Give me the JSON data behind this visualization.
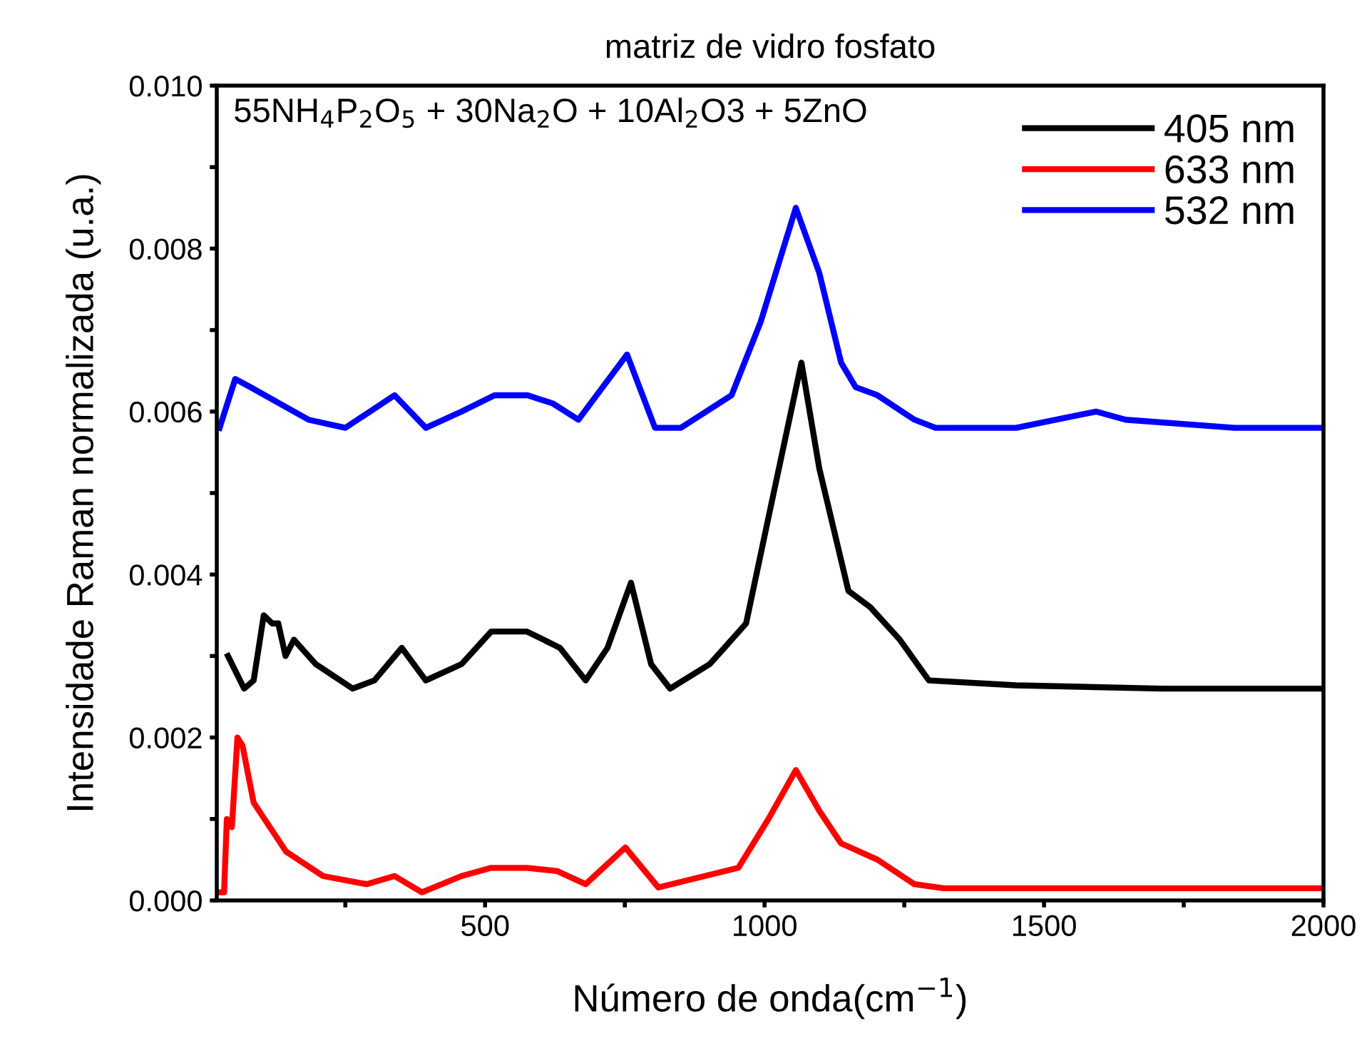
{
  "chart_data": {
    "type": "line",
    "title": "matriz de vidro fosfato",
    "xlabel": "Número de onda(cm$^{−1}$)",
    "ylabel": "Intensidade Raman normalizada (u.a.)",
    "annotations": [
      "55NH$_{4}$P$_{2}$O$_{5}$ + 30Na$_{2}$O + 10Al$_{2}$O3 + 5ZnO"
    ],
    "xlim": [
      20,
      2000
    ],
    "ylim": [
      0,
      0.01
    ],
    "xticks": [
      {
        "value": 250,
        "label": null
      },
      500,
      {
        "value": 750,
        "label": null
      },
      1000,
      {
        "value": 1250,
        "label": null
      },
      1500,
      {
        "value": 1750,
        "label": null
      },
      2000
    ],
    "yticks": [
      {
        "value": 0,
        "label": "0.000"
      },
      {
        "value": 0.001,
        "label": null
      },
      {
        "value": 0.002,
        "label": "0.002"
      },
      {
        "value": 0.003,
        "label": null
      },
      {
        "value": 0.004,
        "label": "0.004"
      },
      {
        "value": 0.005,
        "label": null
      },
      {
        "value": 0.006,
        "label": "0.006"
      },
      {
        "value": 0.007,
        "label": null
      },
      {
        "value": 0.008,
        "label": "0.008"
      },
      {
        "value": 0.009,
        "label": null
      },
      {
        "value": 0.01,
        "label": "0.010"
      }
    ],
    "grid": false,
    "legend": "top right",
    "marker": "none",
    "line_style": "solid",
    "series": [
      {
        "name": "405 nm",
        "color": "#000000",
        "x": [
          40,
          69,
          86,
          104,
          119,
          130,
          143,
          158,
          197,
          263,
          302,
          351,
          394,
          458,
          511,
          575,
          634,
          680,
          719,
          761,
          797,
          831,
          902,
          967,
          1007,
          1066,
          1098,
          1150,
          1189,
          1242,
          1294,
          1450,
          1711,
          1998
        ],
        "values": [
          0.003,
          0.0026,
          0.0027,
          0.0035,
          0.0034,
          0.0034,
          0.003,
          0.0032,
          0.0029,
          0.0026,
          0.0027,
          0.0031,
          0.0027,
          0.0029,
          0.0033,
          0.0033,
          0.0031,
          0.0027,
          0.0031,
          0.0039,
          0.0029,
          0.0026,
          0.0029,
          0.0034,
          0.0047,
          0.0066,
          0.0053,
          0.0038,
          0.0036,
          0.0032,
          0.0027,
          0.00264,
          0.0026,
          0.0026
        ]
      },
      {
        "name": "633 nm",
        "color": "#ff0000",
        "x": [
          25,
          33,
          38,
          47,
          57,
          66,
          86,
          144,
          210,
          288,
          338,
          387,
          458,
          511,
          575,
          629,
          680,
          751,
          810,
          953,
          1007,
          1056,
          1098,
          1137,
          1202,
          1268,
          1320,
          1998
        ],
        "values": [
          0.0001,
          0.0001,
          0.001,
          0.0009,
          0.002,
          0.0019,
          0.0012,
          0.0006,
          0.0003,
          0.0002,
          0.0003,
          0.0001,
          0.0003,
          0.0004,
          0.0004,
          0.00036,
          0.0002,
          0.00065,
          0.00016,
          0.0004,
          0.001,
          0.0016,
          0.0011,
          0.0007,
          0.0005,
          0.0002,
          0.00015,
          0.00015
        ]
      },
      {
        "name": "532 nm",
        "color": "#0000ff",
        "x": [
          25,
          53,
          80,
          132,
          184,
          250,
          338,
          394,
          458,
          517,
          576,
          621,
          667,
          754,
          804,
          850,
          941,
          993,
          1056,
          1098,
          1137,
          1163,
          1202,
          1268,
          1306,
          1450,
          1593,
          1646,
          1841,
          1998
        ],
        "values": [
          0.0058,
          0.0064,
          0.0063,
          0.0061,
          0.0059,
          0.0058,
          0.0062,
          0.0058,
          0.006,
          0.0062,
          0.0062,
          0.0061,
          0.0059,
          0.0067,
          0.0058,
          0.0058,
          0.0062,
          0.0071,
          0.0085,
          0.0077,
          0.0066,
          0.0063,
          0.0062,
          0.0059,
          0.0058,
          0.0058,
          0.006,
          0.0059,
          0.0058,
          0.0058
        ]
      }
    ]
  }
}
